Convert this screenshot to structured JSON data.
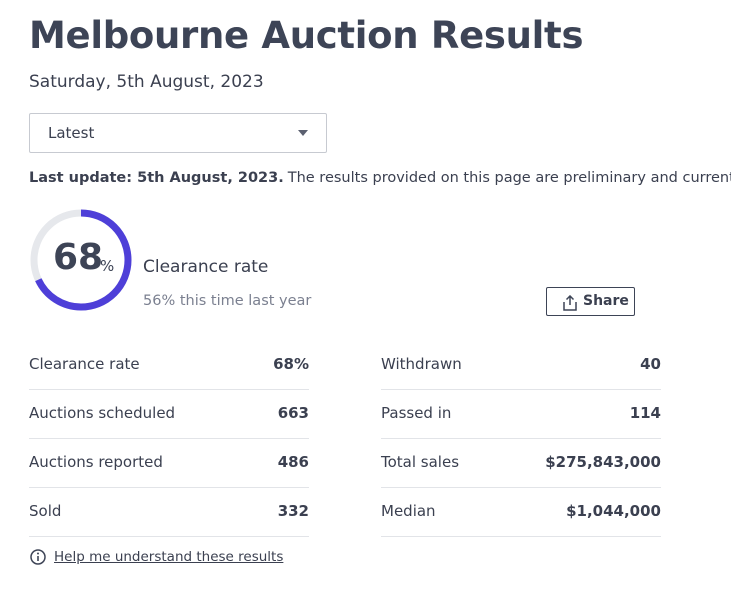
{
  "header": {
    "title": "Melbourne Auction Results",
    "date": "Saturday, 5th August, 2023"
  },
  "dropdown": {
    "selected": "Latest"
  },
  "notice": {
    "label": "Last update: 5th August, 2023.",
    "text": "The results provided on this page are preliminary and current at the"
  },
  "summary": {
    "gauge": {
      "value": 68,
      "unit": "%"
    },
    "label": "Clearance rate",
    "comparison": "56% this time last year"
  },
  "share": {
    "label": "Share"
  },
  "stats": {
    "left": [
      [
        "Clearance rate",
        "68%"
      ],
      [
        "Auctions scheduled",
        "663"
      ],
      [
        "Auctions reported",
        "486"
      ],
      [
        "Sold",
        "332"
      ]
    ],
    "right": [
      [
        "Withdrawn",
        "40"
      ],
      [
        "Passed in",
        "114"
      ],
      [
        "Total sales",
        "$275,843,000"
      ],
      [
        "Median",
        "$1,044,000"
      ]
    ]
  },
  "help": {
    "label": "Help me understand these results"
  }
}
